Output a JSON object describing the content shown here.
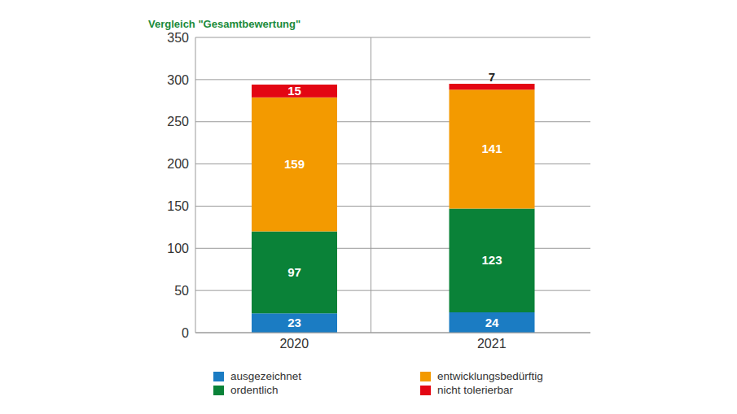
{
  "chart_data": {
    "type": "bar",
    "title": "Vergleich \"Gesamtbewertung\"",
    "categories": [
      "2020",
      "2021"
    ],
    "series": [
      {
        "name": "ausgezeichnet",
        "color": "#1b7cc3",
        "values": [
          23,
          24
        ]
      },
      {
        "name": "ordentlich",
        "color": "#0a8238",
        "values": [
          97,
          123
        ]
      },
      {
        "name": "entwicklungsbedürftig",
        "color": "#f39a00",
        "values": [
          159,
          141
        ]
      },
      {
        "name": "nicht tolerierbar",
        "color": "#e30613",
        "values": [
          15,
          7
        ]
      }
    ],
    "ylim": [
      0,
      350
    ],
    "yticks": [
      0,
      50,
      100,
      150,
      200,
      250,
      300,
      350
    ],
    "grid": true,
    "stacked": true,
    "data_labels": true,
    "legend": "bottom"
  }
}
